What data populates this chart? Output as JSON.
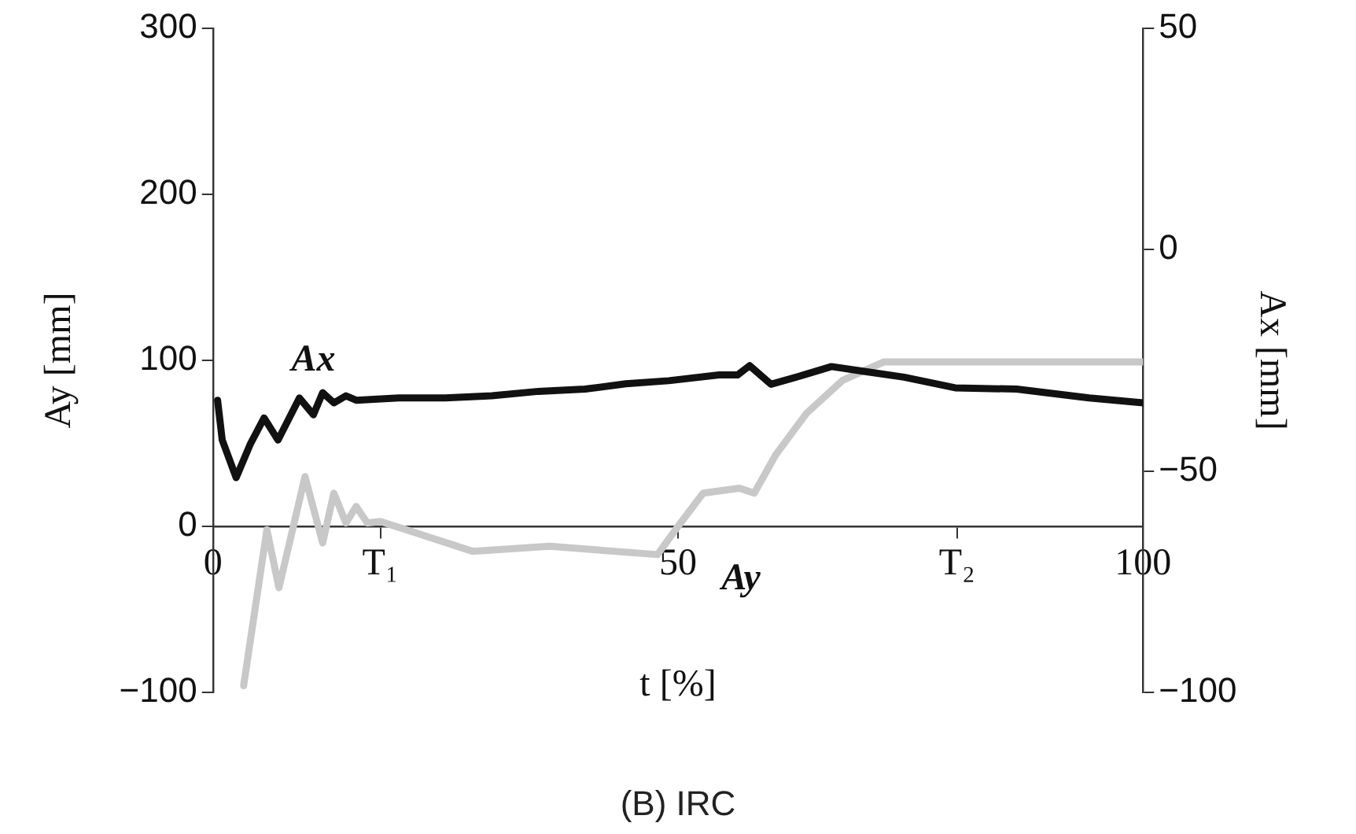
{
  "chart_data": {
    "type": "line",
    "xlabel": "t [%]",
    "ylabel": "Ay [mm]",
    "y2label": "Ax [mm]",
    "annotations": [
      "(B) IRC"
    ],
    "xlim": [
      0,
      100
    ],
    "xticks": [
      0,
      {
        "value": 18,
        "label": "T₁"
      },
      50,
      {
        "value": 80,
        "label": "T₂"
      },
      100
    ],
    "ylim": [
      -100,
      300
    ],
    "yticks": [
      -100,
      0,
      100,
      200,
      300
    ],
    "y2lim": [
      -100,
      50
    ],
    "y2ticks": [
      -100,
      -50,
      0,
      50
    ],
    "series": [
      {
        "name": "Ax",
        "color": "#111111",
        "axis": "y2",
        "x": [
          0.5,
          1,
          2.5,
          4,
          5.5,
          7,
          9.3,
          10.8,
          11.8,
          13,
          14.3,
          15.4,
          20,
          25,
          30,
          35,
          40,
          44.4,
          49,
          54.4,
          56.4,
          57.7,
          60,
          62.7,
          66.5,
          70,
          74.3,
          79.8,
          86.4,
          94.2,
          100
        ],
        "values": [
          -34,
          -43,
          -51.5,
          -44,
          -38,
          -43,
          -33.5,
          -37.3,
          -32.3,
          -34.6,
          -33,
          -34,
          -33.5,
          -33.5,
          -33,
          -32,
          -31.5,
          -30.3,
          -29.6,
          -28.3,
          -28.3,
          -26.2,
          -30.4,
          -28.8,
          -26.4,
          -27.5,
          -28.8,
          -31.2,
          -31.5,
          -33.5,
          -34.6
        ]
      },
      {
        "name": "Ay",
        "color": "#c8c8c8",
        "x": [
          3.3,
          5.8,
          7.1,
          9.9,
          11.8,
          13,
          14.3,
          15.4,
          16.6,
          18,
          22.4,
          27.9,
          36.2,
          47.8,
          50,
          52.7,
          56.6,
          58.2,
          60.5,
          63.8,
          67.7,
          72.1,
          83,
          100
        ],
        "values": [
          -96,
          -2,
          -37,
          30,
          -10,
          20,
          2,
          12,
          2,
          3,
          -5,
          -15,
          -12,
          -17,
          0,
          20,
          23,
          20,
          43,
          68,
          88,
          99,
          99,
          99
        ]
      }
    ],
    "marker": "none"
  }
}
